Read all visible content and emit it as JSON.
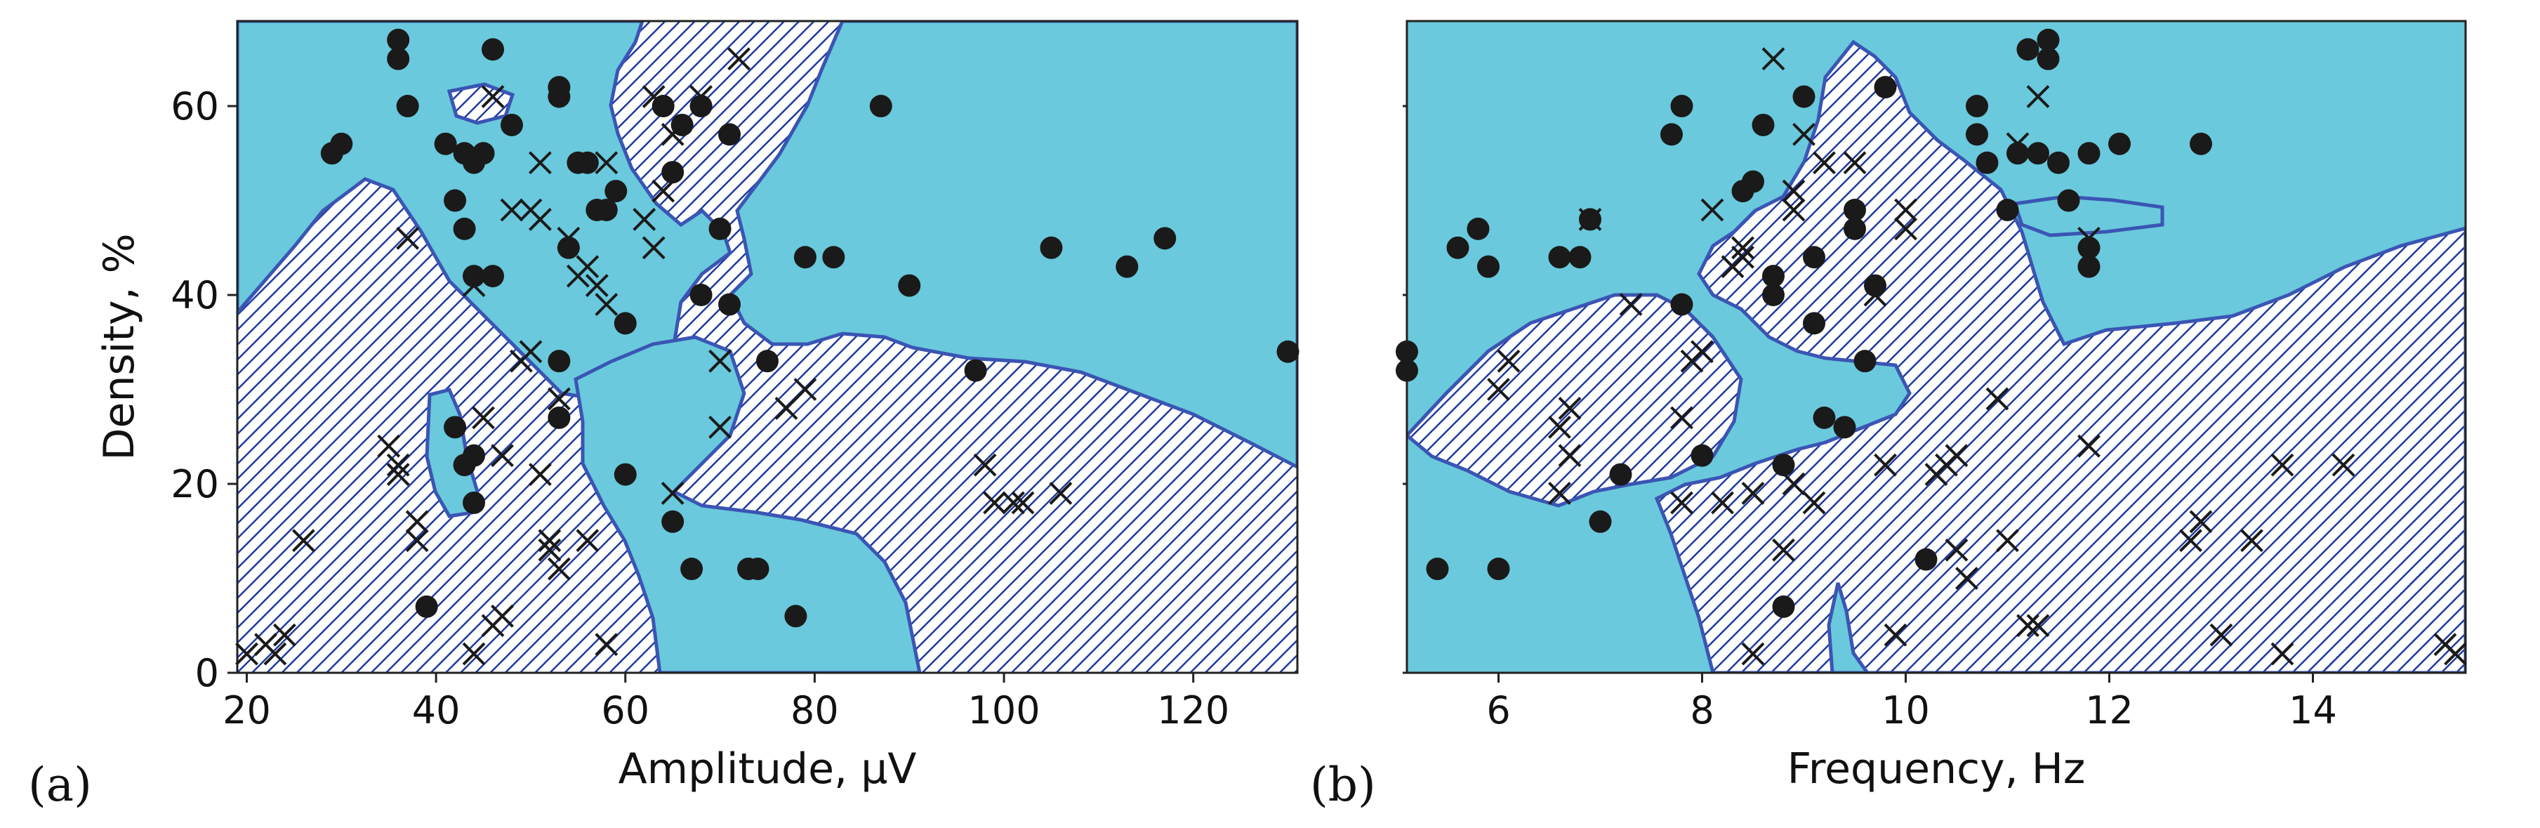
{
  "colors": {
    "region": "#6ac9dc",
    "boundary": "#3a55b4",
    "hatch": "#1f3aa0",
    "marker": "#1a1a1a"
  },
  "legend_markers": {
    "dot": "filled-circle",
    "cross": "x-mark"
  },
  "chart_data": [
    {
      "type": "scatter",
      "panel_label": "(a)",
      "xlabel": "Amplitude, µV",
      "ylabel": "Density, %",
      "xlim": [
        19,
        131
      ],
      "ylim": [
        0,
        69
      ],
      "xticks": [
        20,
        40,
        60,
        80,
        100,
        120
      ],
      "yticks": [
        0,
        20,
        40,
        60
      ],
      "xtick_labels": [
        "20",
        "40",
        "60",
        "80",
        "100",
        "120"
      ],
      "ytick_labels": [
        "0",
        "20",
        "40",
        "60"
      ],
      "background_regions": "light blue region vs hatched region (classifier decision areas)",
      "series": [
        {
          "marker": "dot",
          "points": [
            [
              36,
              67
            ],
            [
              36,
              65
            ],
            [
              37,
              60
            ],
            [
              29,
              55
            ],
            [
              30,
              56
            ],
            [
              41,
              56
            ],
            [
              43,
              55
            ],
            [
              44,
              54
            ],
            [
              45,
              55
            ],
            [
              46,
              66
            ],
            [
              48,
              58
            ],
            [
              42,
              50
            ],
            [
              43,
              47
            ],
            [
              44,
              42
            ],
            [
              46,
              42
            ],
            [
              53,
              62
            ],
            [
              53,
              61
            ],
            [
              55,
              54
            ],
            [
              56,
              54
            ],
            [
              57,
              49
            ],
            [
              58,
              49
            ],
            [
              59,
              51
            ],
            [
              54,
              45
            ],
            [
              53,
              33
            ],
            [
              53,
              27
            ],
            [
              42,
              26
            ],
            [
              43,
              22
            ],
            [
              44,
              23
            ],
            [
              44,
              18
            ],
            [
              39,
              7
            ],
            [
              60,
              21
            ],
            [
              60,
              37
            ],
            [
              64,
              60
            ],
            [
              65,
              53
            ],
            [
              66,
              58
            ],
            [
              68,
              60
            ],
            [
              70,
              47
            ],
            [
              71,
              57
            ],
            [
              71,
              39
            ],
            [
              68,
              40
            ],
            [
              75,
              33
            ],
            [
              65,
              16
            ],
            [
              67,
              11
            ],
            [
              73,
              11
            ],
            [
              74,
              11
            ],
            [
              78,
              6
            ],
            [
              79,
              44
            ],
            [
              82,
              44
            ],
            [
              87,
              60
            ],
            [
              90,
              41
            ],
            [
              97,
              32
            ],
            [
              105,
              45
            ],
            [
              113,
              43
            ],
            [
              117,
              46
            ],
            [
              130,
              34
            ]
          ]
        },
        {
          "marker": "cross",
          "points": [
            [
              20,
              2
            ],
            [
              22,
              3
            ],
            [
              23,
              2
            ],
            [
              24,
              4
            ],
            [
              26,
              14
            ],
            [
              35,
              24
            ],
            [
              36,
              22
            ],
            [
              36,
              21
            ],
            [
              37,
              46
            ],
            [
              38,
              16
            ],
            [
              38,
              14
            ],
            [
              44,
              41
            ],
            [
              44,
              2
            ],
            [
              46,
              5
            ],
            [
              47,
              6
            ],
            [
              47,
              23
            ],
            [
              45,
              27
            ],
            [
              46,
              61
            ],
            [
              48,
              49
            ],
            [
              49,
              33
            ],
            [
              50,
              34
            ],
            [
              50,
              49
            ],
            [
              51,
              48
            ],
            [
              51,
              54
            ],
            [
              51,
              21
            ],
            [
              52,
              13
            ],
            [
              52,
              14
            ],
            [
              53,
              11
            ],
            [
              53,
              29
            ],
            [
              54,
              46
            ],
            [
              55,
              42
            ],
            [
              56,
              43
            ],
            [
              57,
              41
            ],
            [
              58,
              54
            ],
            [
              58,
              39
            ],
            [
              56,
              14
            ],
            [
              58,
              3
            ],
            [
              62,
              48
            ],
            [
              63,
              61
            ],
            [
              63,
              45
            ],
            [
              64,
              51
            ],
            [
              65,
              57
            ],
            [
              65,
              19
            ],
            [
              68,
              61
            ],
            [
              70,
              33
            ],
            [
              70,
              26
            ],
            [
              72,
              65
            ],
            [
              77,
              28
            ],
            [
              79,
              30
            ],
            [
              98,
              22
            ],
            [
              99,
              18
            ],
            [
              101,
              18
            ],
            [
              102,
              18
            ],
            [
              106,
              19
            ]
          ]
        }
      ]
    },
    {
      "type": "scatter",
      "panel_label": "(b)",
      "xlabel": "Frequency, Hz",
      "ylabel": "",
      "xlim": [
        5.1,
        15.5
      ],
      "ylim": [
        0,
        69
      ],
      "xticks": [
        6,
        8,
        10,
        12,
        14
      ],
      "yticks": [
        0,
        20,
        40,
        60
      ],
      "xtick_labels": [
        "6",
        "8",
        "10",
        "12",
        "14"
      ],
      "ytick_labels": [],
      "background_regions": "light blue region vs hatched region (classifier decision areas)",
      "series": [
        {
          "marker": "dot",
          "points": [
            [
              5.1,
              34
            ],
            [
              5.1,
              32
            ],
            [
              5.4,
              11
            ],
            [
              5.6,
              45
            ],
            [
              5.8,
              47
            ],
            [
              5.9,
              43
            ],
            [
              6.0,
              11
            ],
            [
              6.6,
              44
            ],
            [
              6.8,
              44
            ],
            [
              6.9,
              48
            ],
            [
              7.0,
              16
            ],
            [
              7.2,
              21
            ],
            [
              7.7,
              57
            ],
            [
              7.8,
              60
            ],
            [
              7.8,
              39
            ],
            [
              8.0,
              23
            ],
            [
              8.4,
              51
            ],
            [
              8.5,
              52
            ],
            [
              8.6,
              58
            ],
            [
              8.7,
              42
            ],
            [
              8.7,
              40
            ],
            [
              8.8,
              22
            ],
            [
              8.8,
              7
            ],
            [
              9.0,
              61
            ],
            [
              9.1,
              44
            ],
            [
              9.1,
              37
            ],
            [
              9.2,
              27
            ],
            [
              9.4,
              26
            ],
            [
              9.5,
              49
            ],
            [
              9.5,
              47
            ],
            [
              9.6,
              33
            ],
            [
              9.7,
              41
            ],
            [
              9.8,
              62
            ],
            [
              10.2,
              12
            ],
            [
              10.7,
              60
            ],
            [
              10.7,
              57
            ],
            [
              10.8,
              54
            ],
            [
              11.0,
              49
            ],
            [
              11.1,
              55
            ],
            [
              11.2,
              66
            ],
            [
              11.3,
              55
            ],
            [
              11.4,
              67
            ],
            [
              11.4,
              65
            ],
            [
              11.5,
              54
            ],
            [
              11.6,
              50
            ],
            [
              11.8,
              55
            ],
            [
              11.8,
              45
            ],
            [
              11.8,
              43
            ],
            [
              12.1,
              56
            ],
            [
              12.9,
              56
            ]
          ]
        },
        {
          "marker": "cross",
          "points": [
            [
              6.0,
              30
            ],
            [
              6.1,
              33
            ],
            [
              6.6,
              26
            ],
            [
              6.6,
              19
            ],
            [
              6.7,
              28
            ],
            [
              6.7,
              23
            ],
            [
              6.9,
              48
            ],
            [
              7.3,
              39
            ],
            [
              7.8,
              27
            ],
            [
              7.8,
              18
            ],
            [
              7.9,
              33
            ],
            [
              8.0,
              34
            ],
            [
              8.1,
              49
            ],
            [
              8.2,
              18
            ],
            [
              8.3,
              43
            ],
            [
              8.4,
              45
            ],
            [
              8.4,
              44
            ],
            [
              8.5,
              2
            ],
            [
              8.5,
              19
            ],
            [
              8.7,
              65
            ],
            [
              8.8,
              13
            ],
            [
              8.9,
              20
            ],
            [
              8.9,
              49
            ],
            [
              8.9,
              51
            ],
            [
              9.0,
              57
            ],
            [
              9.1,
              18
            ],
            [
              9.2,
              54
            ],
            [
              9.5,
              54
            ],
            [
              9.7,
              40
            ],
            [
              9.8,
              22
            ],
            [
              9.9,
              4
            ],
            [
              10.0,
              47
            ],
            [
              10.0,
              49
            ],
            [
              10.3,
              21
            ],
            [
              10.4,
              22
            ],
            [
              10.5,
              23
            ],
            [
              10.5,
              13
            ],
            [
              10.6,
              10
            ],
            [
              10.9,
              29
            ],
            [
              11.0,
              14
            ],
            [
              11.1,
              56
            ],
            [
              11.2,
              5
            ],
            [
              11.3,
              5
            ],
            [
              11.3,
              61
            ],
            [
              11.8,
              24
            ],
            [
              11.8,
              46
            ],
            [
              12.8,
              14
            ],
            [
              12.9,
              16
            ],
            [
              13.1,
              4
            ],
            [
              13.4,
              14
            ],
            [
              13.7,
              22
            ],
            [
              13.7,
              2
            ],
            [
              14.3,
              22
            ],
            [
              15.3,
              3
            ],
            [
              15.4,
              2
            ]
          ]
        }
      ]
    }
  ]
}
